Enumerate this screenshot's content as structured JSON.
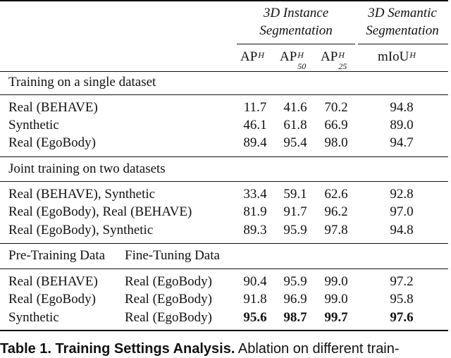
{
  "header": {
    "group1_line1": "3D Instance",
    "group1_line2": "Segmentation",
    "group2_line1": "3D Semantic",
    "group2_line2": "Segmentation",
    "cols": [
      {
        "base": "AP",
        "sup": "H",
        "sub": ""
      },
      {
        "base": "AP",
        "sup": "H",
        "sub": "50"
      },
      {
        "base": "AP",
        "sup": "H",
        "sub": "25"
      },
      {
        "base": "mIoU",
        "sup": "H",
        "sub": ""
      }
    ]
  },
  "sections": [
    {
      "title": "Training on a single dataset",
      "rows": [
        {
          "label": "Real (BEHAVE)",
          "vals": [
            "11.7",
            "41.6",
            "70.2",
            "94.8"
          ]
        },
        {
          "label": "Synthetic",
          "vals": [
            "46.1",
            "61.8",
            "66.9",
            "89.0"
          ]
        },
        {
          "label": "Real (EgoBody)",
          "vals": [
            "89.4",
            "95.4",
            "98.0",
            "94.7"
          ]
        }
      ]
    },
    {
      "title": "Joint training on two datasets",
      "rows": [
        {
          "label": "Real (BEHAVE), Synthetic",
          "vals": [
            "33.4",
            "59.1",
            "62.6",
            "92.8"
          ]
        },
        {
          "label": "Real (EgoBody), Real (BEHAVE)",
          "vals": [
            "81.9",
            "91.7",
            "96.2",
            "97.0"
          ]
        },
        {
          "label": "Real (EgoBody), Synthetic",
          "vals": [
            "89.3",
            "95.9",
            "97.8",
            "94.8"
          ]
        }
      ]
    },
    {
      "title": "Pre-Training Data",
      "title2": "Fine-Tuning Data",
      "rows": [
        {
          "label": "Real (BEHAVE)",
          "label2": "Real (EgoBody)",
          "vals": [
            "90.4",
            "95.9",
            "99.0",
            "97.2"
          ]
        },
        {
          "label": "Real (EgoBody)",
          "label2": "Real (EgoBody)",
          "vals": [
            "91.8",
            "96.9",
            "99.0",
            "95.8"
          ]
        },
        {
          "label": "Synthetic",
          "label2": "Real (EgoBody)",
          "vals": [
            "95.6",
            "98.7",
            "99.7",
            "97.6"
          ]
        }
      ]
    }
  ],
  "caption": {
    "label": "Table 1. Training Settings Analysis.",
    "text": "Ablation on different train-"
  }
}
